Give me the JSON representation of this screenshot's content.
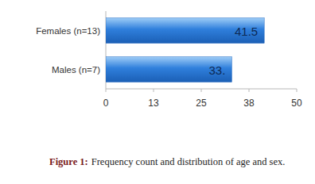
{
  "chart_data": {
    "type": "bar",
    "orientation": "horizontal",
    "caption_label": "Figure 1:",
    "caption": "Frequency count and distribution of age and sex.",
    "categories": [
      "Females (n=13)",
      "Males (n=7)"
    ],
    "values": [
      41.5,
      33
    ],
    "value_labels": [
      "41.5",
      "33."
    ],
    "data_labels": true,
    "color": "#2f7fdc",
    "xlim": [
      0,
      50
    ],
    "xticks": [
      0,
      {
        "value": 12.5,
        "label": "13"
      },
      25,
      {
        "value": 37.5,
        "label": "38"
      },
      50
    ],
    "grid": false
  }
}
